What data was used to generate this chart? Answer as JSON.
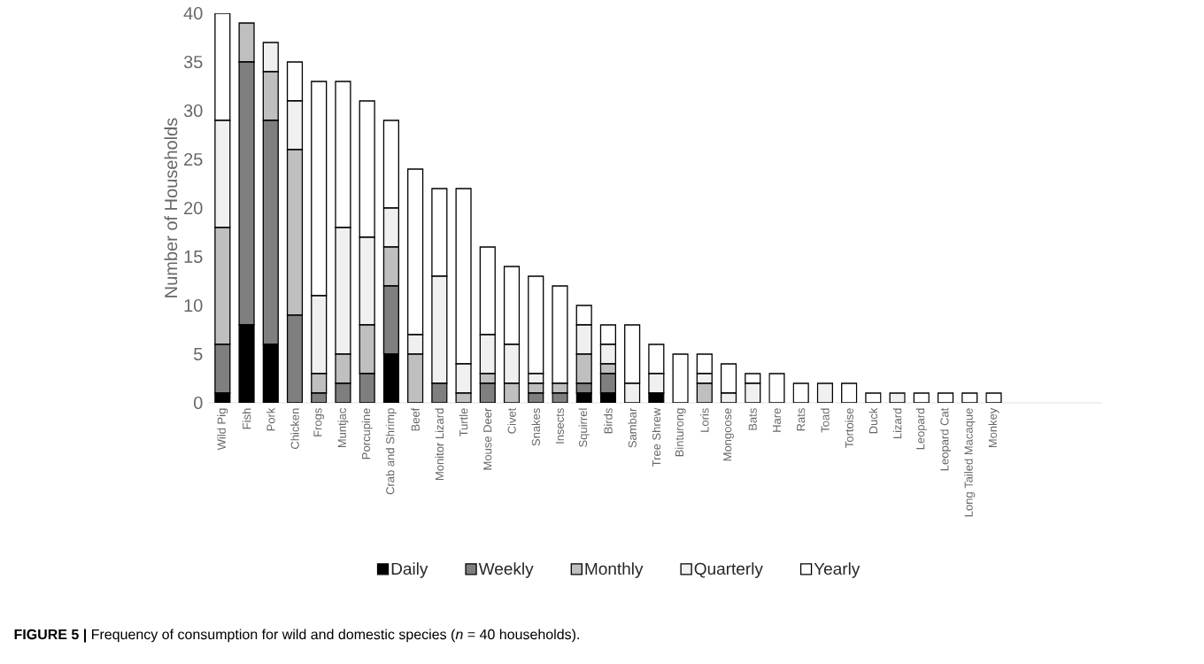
{
  "chart_data": {
    "type": "bar",
    "stacked": true,
    "ylabel": "Number of Households",
    "legend": "bottom",
    "categories": [
      "Wild Pig",
      "Fish",
      "Pork",
      "Chicken",
      "Frogs",
      "Muntjac",
      "Porcupine",
      "Crab and Shrimp",
      "Beef",
      "Monitor Lizard",
      "Turtle",
      "Mouse Deer",
      "Civet",
      "Snakes",
      "Insects",
      "Squirrel",
      "Birds",
      "Sambar",
      "Tree Shrew",
      "Binturong",
      "Loris",
      "Mongoose",
      "Bats",
      "Hare",
      "Rats",
      "Toad",
      "Tortoise",
      "Duck",
      "Lizard",
      "Leopard",
      "Leopard Cat",
      "Long Tailed Macaque",
      "Monkey"
    ],
    "series": [
      {
        "name": "Daily",
        "color": "#000000",
        "values": [
          1,
          8,
          6,
          0,
          0,
          0,
          0,
          5,
          0,
          0,
          0,
          0,
          0,
          0,
          0,
          1,
          1,
          0,
          1,
          0,
          0,
          0,
          0,
          0,
          0,
          0,
          0,
          0,
          0,
          0,
          0,
          0,
          0
        ]
      },
      {
        "name": "Weekly",
        "color": "#7f7f7f",
        "values": [
          5,
          27,
          23,
          9,
          1,
          2,
          3,
          7,
          0,
          2,
          0,
          2,
          0,
          1,
          1,
          1,
          2,
          0,
          0,
          0,
          0,
          0,
          0,
          0,
          0,
          0,
          0,
          0,
          0,
          0,
          0,
          0,
          0
        ]
      },
      {
        "name": "Monthly",
        "color": "#bfbfbf",
        "values": [
          12,
          4,
          5,
          17,
          2,
          3,
          5,
          4,
          5,
          0,
          1,
          1,
          2,
          1,
          1,
          3,
          1,
          0,
          0,
          0,
          2,
          0,
          0,
          0,
          0,
          0,
          0,
          0,
          0,
          0,
          0,
          0,
          0
        ]
      },
      {
        "name": "Quarterly",
        "color": "#f0f0f0",
        "values": [
          11,
          0,
          3,
          5,
          8,
          13,
          9,
          4,
          2,
          11,
          3,
          4,
          4,
          1,
          0,
          3,
          2,
          2,
          2,
          0,
          1,
          1,
          2,
          0,
          0,
          2,
          0,
          0,
          1,
          0,
          0,
          0,
          0
        ]
      },
      {
        "name": "Yearly",
        "color": "#ffffff",
        "values": [
          11,
          0,
          0,
          4,
          22,
          15,
          14,
          9,
          17,
          9,
          18,
          9,
          8,
          10,
          10,
          2,
          2,
          6,
          3,
          5,
          2,
          3,
          1,
          3,
          2,
          0,
          2,
          1,
          0,
          1,
          1,
          1,
          1
        ]
      }
    ],
    "ylim": [
      0,
      40
    ],
    "yticks": [
      0,
      5,
      10,
      15,
      20,
      25,
      30,
      35,
      40
    ],
    "annotations": [
      "**FIGURE 5 |** Frequency of consumption for wild and domestic species (*n* = 40 households)."
    ]
  }
}
